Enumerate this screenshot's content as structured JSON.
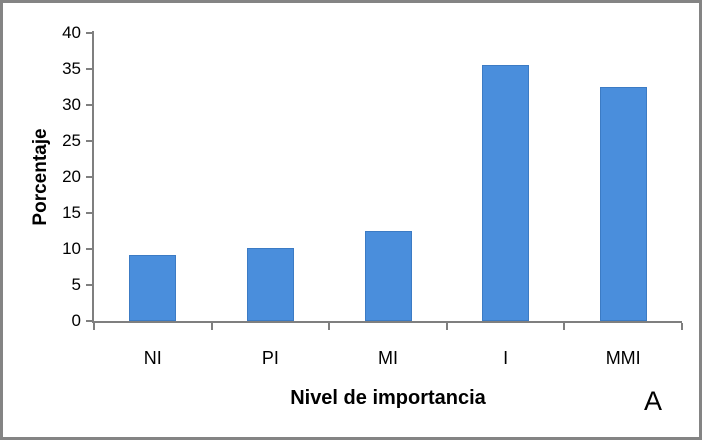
{
  "chart_data": {
    "type": "bar",
    "title": "",
    "categories": [
      "NI",
      "PI",
      "MI",
      "I",
      "MMI"
    ],
    "values": [
      9.2,
      10.2,
      12.5,
      35.5,
      32.5
    ],
    "xlabel": "Nivel de importancia",
    "ylabel": "Porcentaje",
    "ylim": [
      0,
      40
    ],
    "yticks": [
      0,
      5,
      10,
      15,
      20,
      25,
      30,
      35,
      40
    ],
    "grid": false,
    "legend": "none",
    "bar_color": "#4a8edc",
    "bar_border_color": "#3c7bc4",
    "axis_color": "#7f7f7f",
    "frame_color": "#848484"
  },
  "annotations": {
    "panel_label": "A"
  }
}
